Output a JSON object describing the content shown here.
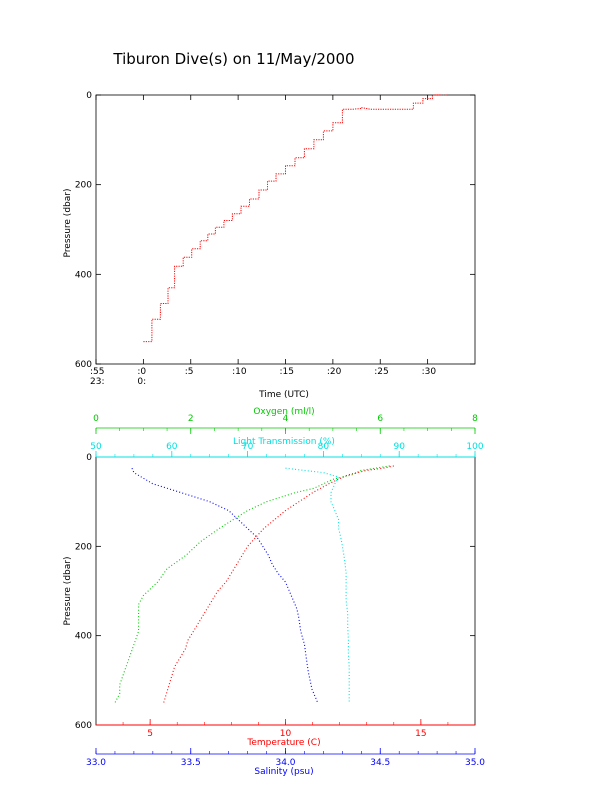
{
  "title": "Tiburon Dive(s) on 11/May/2000",
  "colors": {
    "frame": "#000000",
    "depth_trace": "#ff0000",
    "oxygen": "#00c800",
    "transmission": "#00e0e0",
    "temperature": "#ff0000",
    "salinity": "#0000ff"
  },
  "chart_data": [
    {
      "type": "line",
      "title": "",
      "xlabel": "Time (UTC)",
      "ylabel": "Pressure (dbar)",
      "y_reversed": true,
      "ylim": [
        0,
        600
      ],
      "y_ticks": [
        "0",
        "200",
        "400",
        "600"
      ],
      "x_tick_minutes": [
        ":55",
        ":0",
        ":5",
        ":10",
        ":15",
        ":20",
        ":25",
        ":30"
      ],
      "x_hour_row": [
        "23:",
        "0:"
      ],
      "xlim_minutes": [
        -5,
        35
      ],
      "grid": false,
      "series": [
        {
          "x": [
            0,
            0.9,
            0.9,
            1.8,
            1.8,
            2.6,
            2.6,
            3.3,
            3.3,
            4.2,
            4.2,
            5.1,
            5.1,
            6.0,
            6.0,
            6.8,
            6.8,
            7.6,
            7.6,
            8.5,
            8.5,
            9.4,
            9.4,
            10.3,
            10.3,
            11.2,
            11.2,
            12.2,
            12.2,
            13.1,
            13.1,
            14.0,
            14.0,
            15.0,
            15.0,
            16.0,
            16.0,
            17.0,
            17.0,
            18.0,
            18.0,
            19.0,
            19.0,
            20.0,
            20.0,
            21.0,
            21.0,
            22.0,
            22.0,
            23.0,
            23.0,
            24.0,
            24.5,
            25.5,
            26.5,
            27.5,
            28.5,
            28.5,
            29.5,
            29.5,
            30.5,
            30.5,
            31.5,
            32.0
          ],
          "y": [
            550,
            550,
            500,
            500,
            465,
            465,
            430,
            430,
            382,
            382,
            362,
            362,
            343,
            343,
            325,
            325,
            310,
            310,
            295,
            295,
            280,
            280,
            265,
            265,
            248,
            248,
            232,
            232,
            212,
            212,
            192,
            192,
            176,
            176,
            158,
            158,
            140,
            140,
            120,
            120,
            100,
            100,
            80,
            80,
            62,
            62,
            32,
            32,
            32,
            30,
            28,
            32,
            32,
            32,
            32,
            32,
            32,
            18,
            18,
            8,
            8,
            0,
            0,
            0
          ]
        }
      ]
    },
    {
      "type": "scatter",
      "title": "",
      "ylabel": "Pressure (dbar)",
      "y_reversed": true,
      "ylim": [
        0,
        600
      ],
      "y_ticks": [
        "0",
        "200",
        "400",
        "600"
      ],
      "grid": false,
      "axes": {
        "oxygen": {
          "label": "Oxygen (ml/l)",
          "range": [
            0,
            8
          ],
          "ticks": [
            "0",
            "2",
            "4",
            "6",
            "8"
          ]
        },
        "transmission": {
          "label": "Light Transmission (%)",
          "range": [
            50,
            100
          ],
          "ticks": [
            "50",
            "60",
            "70",
            "80",
            "90",
            "100"
          ]
        },
        "temperature": {
          "label": "Temperature (C)",
          "range": [
            3,
            17
          ],
          "ticks": [
            "5",
            "10",
            "15"
          ]
        },
        "salinity": {
          "label": "Salinity (psu)",
          "range": [
            33.0,
            35.0
          ],
          "ticks": [
            "33.0",
            "33.5",
            "34.0",
            "34.5",
            "35.0"
          ]
        }
      },
      "series": [
        {
          "name": "Oxygen (ml/l)",
          "axis": "oxygen",
          "x": [
            6.2,
            5.9,
            5.6,
            5.4,
            5.0,
            4.8,
            4.6,
            4.2,
            3.9,
            3.6,
            3.2,
            2.9,
            2.6,
            2.2,
            1.9,
            1.5,
            1.3,
            1.0,
            0.9,
            0.9,
            0.9,
            0.8,
            0.7,
            0.6,
            0.5,
            0.5,
            0.4
          ],
          "y": [
            20,
            25,
            30,
            40,
            50,
            60,
            70,
            80,
            90,
            100,
            120,
            140,
            160,
            190,
            220,
            250,
            280,
            310,
            330,
            360,
            390,
            420,
            450,
            480,
            510,
            530,
            550
          ]
        },
        {
          "name": "Light Transmission (%)",
          "axis": "transmission",
          "x": [
            75,
            80,
            82,
            81.5,
            81,
            81,
            81.5,
            82,
            82,
            82.3,
            82.5,
            82.8,
            83,
            83,
            83,
            83.2,
            83.2,
            83.3,
            83.3,
            83.4,
            83.4,
            83.4,
            83.4,
            83.4
          ],
          "y": [
            25,
            35,
            45,
            60,
            80,
            100,
            120,
            140,
            160,
            180,
            200,
            230,
            260,
            290,
            320,
            350,
            380,
            410,
            440,
            470,
            500,
            520,
            540,
            550
          ]
        },
        {
          "name": "Temperature (C)",
          "axis": "temperature",
          "x": [
            14.0,
            13.6,
            13.0,
            12.3,
            11.6,
            11.0,
            10.5,
            10.0,
            9.6,
            9.2,
            8.9,
            8.6,
            8.4,
            8.2,
            8.0,
            7.8,
            7.5,
            7.2,
            6.9,
            6.6,
            6.4,
            6.3,
            6.1,
            5.9,
            5.8,
            5.7,
            5.6,
            5.5
          ],
          "y": [
            20,
            25,
            30,
            40,
            60,
            80,
            100,
            120,
            140,
            160,
            180,
            200,
            220,
            240,
            260,
            280,
            300,
            330,
            360,
            390,
            410,
            430,
            450,
            470,
            490,
            510,
            530,
            550
          ]
        },
        {
          "name": "Salinity (psu)",
          "axis": "salinity",
          "x": [
            33.19,
            33.2,
            33.3,
            33.45,
            33.6,
            33.7,
            33.75,
            33.8,
            33.85,
            33.88,
            33.91,
            33.93,
            33.96,
            34.0,
            34.02,
            34.04,
            34.06,
            34.07,
            34.08,
            34.1,
            34.11,
            34.12,
            34.13,
            34.14,
            34.16,
            34.17
          ],
          "y": [
            25,
            35,
            60,
            80,
            100,
            120,
            140,
            160,
            180,
            200,
            220,
            240,
            260,
            280,
            300,
            320,
            340,
            360,
            390,
            420,
            450,
            480,
            500,
            520,
            540,
            550
          ]
        }
      ]
    }
  ]
}
